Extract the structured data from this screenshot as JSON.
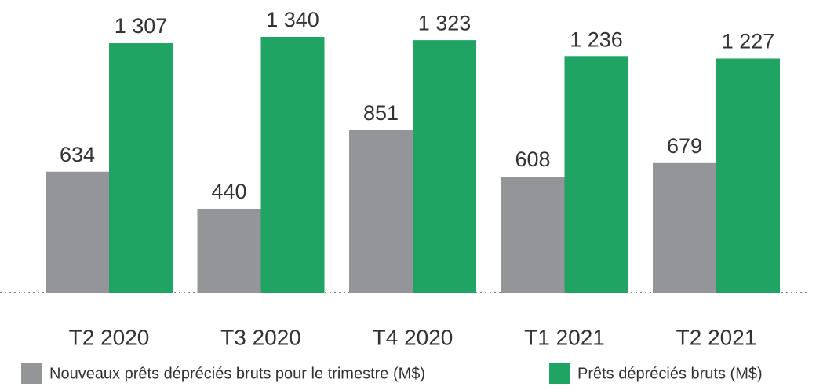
{
  "chart_data": {
    "type": "bar",
    "categories": [
      "T2 2020",
      "T3 2020",
      "T4 2020",
      "T1 2021",
      "T2 2021"
    ],
    "series": [
      {
        "name": "Nouveaux prêts dépréciés bruts pour le trimestre (M$)",
        "color": "#939598",
        "values": [
          634,
          440,
          851,
          608,
          679
        ]
      },
      {
        "name": "Prêts dépréciés bruts (M$)",
        "color": "#1fa463",
        "values": [
          1307,
          1340,
          1323,
          1236,
          1227
        ],
        "value_labels": [
          "1 307",
          "1 340",
          "1 323",
          "1 236",
          "1 227"
        ]
      }
    ]
  }
}
